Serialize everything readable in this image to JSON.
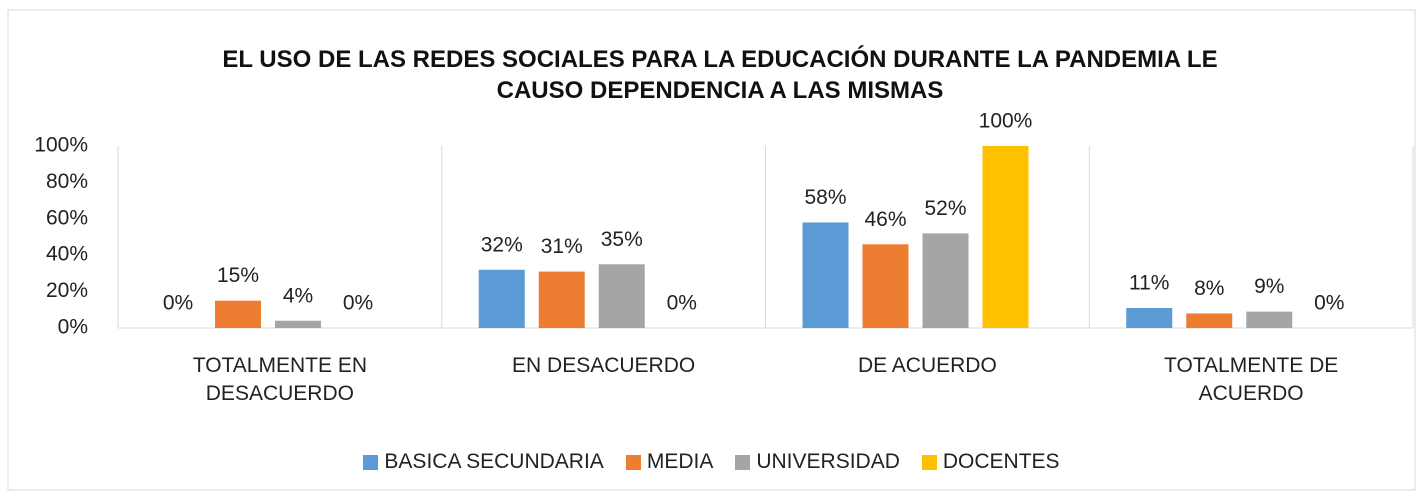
{
  "chart_data": {
    "type": "bar",
    "title": "EL USO DE LAS REDES SOCIALES PARA LA EDUCACIÓN DURANTE LA PANDEMIA LE CAUSO DEPENDENCIA A LAS MISMAS",
    "categories": [
      "TOTALMENTE EN DESACUERDO",
      "EN DESACUERDO",
      "DE ACUERDO",
      "TOTALMENTE DE ACUERDO"
    ],
    "series": [
      {
        "name": "BASICA SECUNDARIA",
        "color": "#5b9bd5",
        "values": [
          0,
          32,
          58,
          11
        ],
        "value_labels": [
          "0%",
          "32%",
          "58%",
          "11%"
        ]
      },
      {
        "name": "MEDIA",
        "color": "#ed7d31",
        "values": [
          15,
          31,
          46,
          8
        ],
        "value_labels": [
          "15%",
          "31%",
          "46%",
          "8%"
        ]
      },
      {
        "name": "UNIVERSIDAD",
        "color": "#a5a5a5",
        "values": [
          4,
          35,
          52,
          9
        ],
        "value_labels": [
          "4%",
          "35%",
          "52%",
          "9%"
        ]
      },
      {
        "name": "DOCENTES",
        "color": "#ffc000",
        "values": [
          0,
          0,
          100,
          0
        ],
        "value_labels": [
          "0%",
          "0%",
          "100%",
          "0%"
        ]
      }
    ],
    "ylim": [
      0,
      100
    ],
    "yticks": [
      {
        "value": 0,
        "label": "0%"
      },
      {
        "value": 20,
        "label": "20%"
      },
      {
        "value": 40,
        "label": "40%"
      },
      {
        "value": 60,
        "label": "60%"
      },
      {
        "value": 80,
        "label": "80%"
      },
      {
        "value": 100,
        "label": "100%"
      }
    ],
    "legend": "bottom"
  }
}
